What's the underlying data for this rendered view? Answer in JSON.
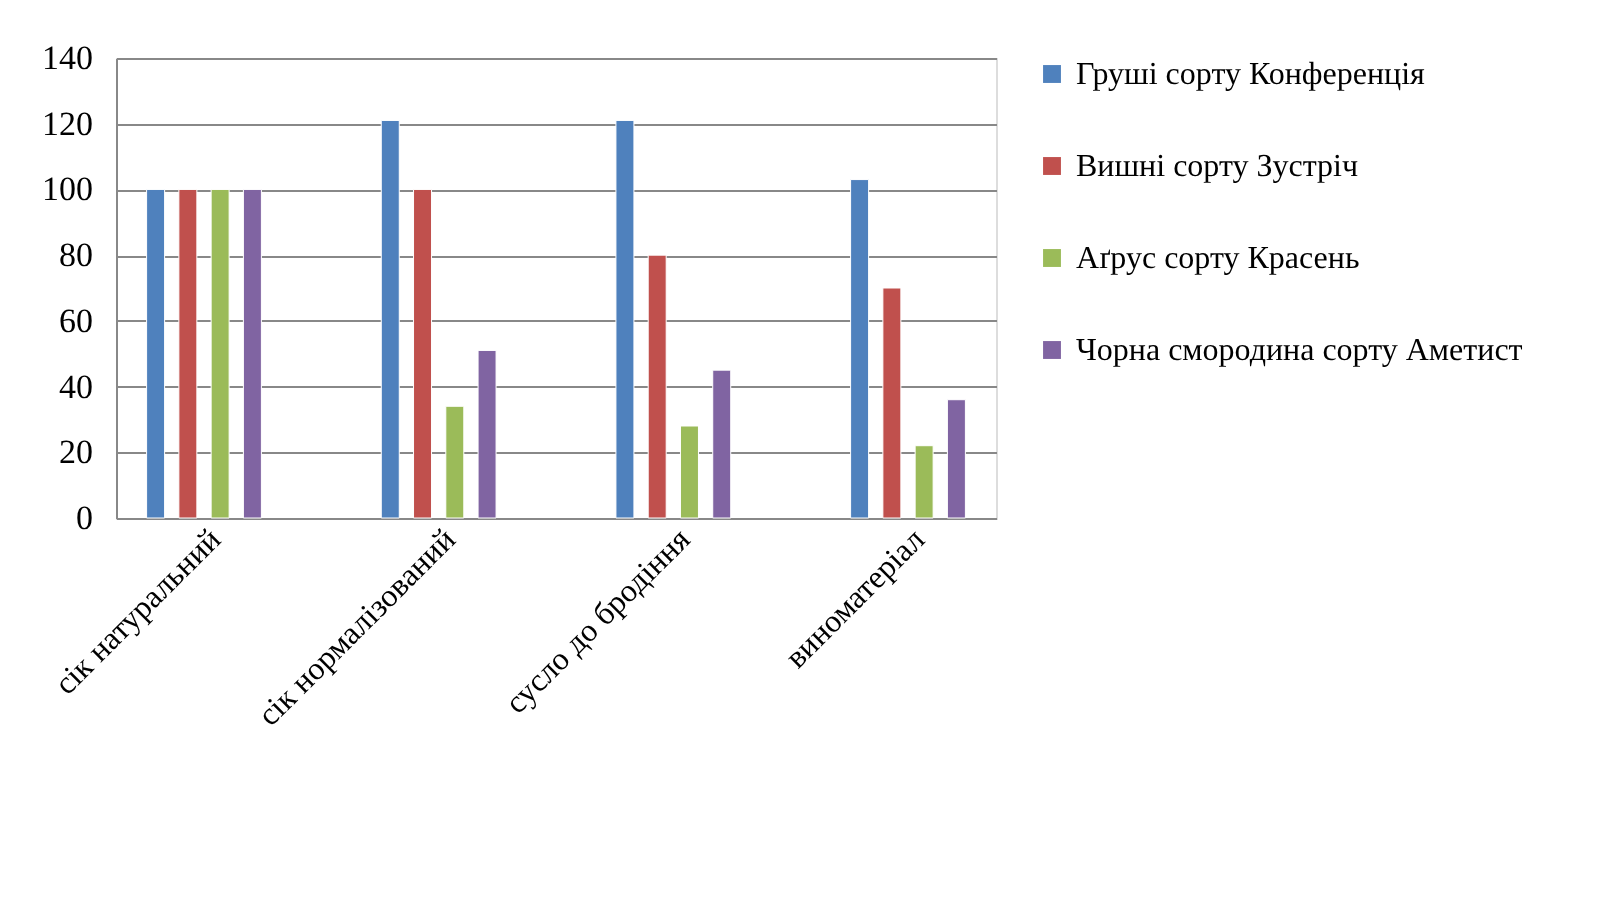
{
  "chart_data": {
    "type": "bar",
    "categories": [
      "сік натуральний",
      "сік нормалізований",
      "сусло до бродіння",
      "виноматеріал"
    ],
    "series": [
      {
        "name": "Груші сорту Конференція",
        "color": "#4f81bd",
        "values": [
          100,
          121,
          121,
          103
        ]
      },
      {
        "name": "Вишні сорту Зустріч",
        "color": "#c0504d",
        "values": [
          100,
          100,
          80,
          70
        ]
      },
      {
        "name": "Аґрус сорту Красень",
        "color": "#9bbb59",
        "values": [
          100,
          34,
          28,
          22
        ]
      },
      {
        "name": "Чорна смородина сорту Аметист",
        "color": "#8064a2",
        "values": [
          100,
          51,
          45,
          36
        ]
      }
    ],
    "ylim": [
      0,
      140
    ],
    "yticks": [
      0,
      20,
      40,
      60,
      80,
      100,
      120,
      140
    ],
    "grid": "y",
    "legend": "right"
  }
}
